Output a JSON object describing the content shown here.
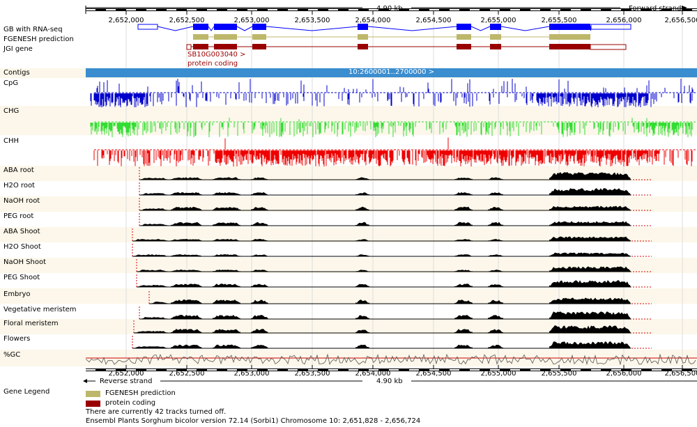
{
  "ruler": {
    "size_top": "4.90 kb",
    "size_bottom": "4.90 kb",
    "forward_strand": "Forward strand",
    "reverse_strand": "Reverse strand",
    "ticks": [
      "2,652,000",
      "2,652,500",
      "2,653,000",
      "2,653,500",
      "2,654,000",
      "2,654,500",
      "2,655,000",
      "2,655,500",
      "2,656,000",
      "2,656,500"
    ]
  },
  "tracks": {
    "gene_labels": [
      "GB with RNA-seq",
      "FGENESH prediction",
      "JGI gene"
    ],
    "gene_annotation_id": "SB10G003040 >",
    "gene_annotation_type": "protein coding",
    "contigs_label": "Contigs",
    "contig_text": "10:2600001..2700000 >",
    "methylation": [
      "CpG",
      "CHG",
      "CHH"
    ],
    "coverage": [
      "ABA root",
      "H2O root",
      "NaOH root",
      "PEG root",
      "ABA Shoot",
      "H2O Shoot",
      "NaOH Shoot",
      "PEG Shoot",
      "Embryo",
      "Vegetative meristem",
      "Floral meristem",
      "Flowers"
    ],
    "gc_label": "%GC"
  },
  "legend": {
    "title": "Gene Legend",
    "items": [
      {
        "label": "FGENESH prediction",
        "color": "#bdb76b"
      },
      {
        "label": "protein coding",
        "color": "#990000"
      }
    ]
  },
  "footer": {
    "tracks_off": "There are currently 42 tracks turned off.",
    "version": "Ensembl Plants Sorghum bicolor version 72.14 (Sorbi1) Chromosome 10: 2,651,828 - 2,656,724"
  },
  "colors": {
    "rna_seq": "#0000ff",
    "fgenesh": "#bdb76b",
    "jgi": "#990000",
    "contig": "#3a8dcf",
    "cpg": "#0000cc",
    "chg": "#33dd33",
    "chh": "#ee0000",
    "coverage": "#000000",
    "gc": "#555555",
    "band": "#fcf7ea"
  }
}
